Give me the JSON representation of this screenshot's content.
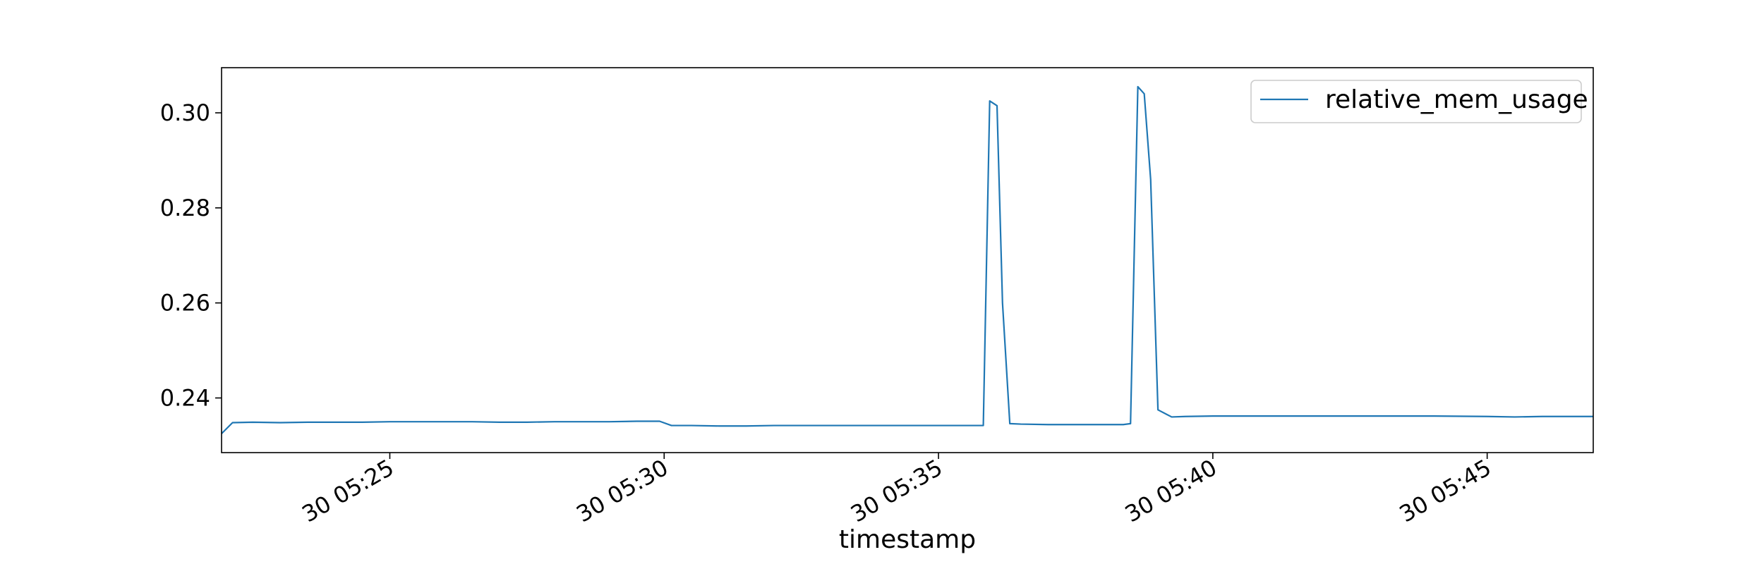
{
  "chart_data": {
    "type": "line",
    "title": "",
    "xlabel": "timestamp",
    "ylabel": "",
    "xlim": [
      "05:21:56",
      "05:46:56"
    ],
    "ylim": [
      0.2285,
      0.3095
    ],
    "grid": false,
    "legend_position": "top-right",
    "colors": {
      "series": "#1f77b4",
      "axes": "#000000",
      "background": "#ffffff"
    },
    "x_ticks": [
      {
        "value": "05:25:00",
        "label": "30 05:25"
      },
      {
        "value": "05:30:00",
        "label": "30 05:30"
      },
      {
        "value": "05:35:00",
        "label": "30 05:35"
      },
      {
        "value": "05:40:00",
        "label": "30 05:40"
      },
      {
        "value": "05:45:00",
        "label": "30 05:45"
      }
    ],
    "y_ticks": [
      {
        "value": 0.24,
        "label": "0.24"
      },
      {
        "value": 0.26,
        "label": "0.26"
      },
      {
        "value": 0.28,
        "label": "0.28"
      },
      {
        "value": 0.3,
        "label": "0.30"
      }
    ],
    "series": [
      {
        "name": "relative_mem_usage",
        "x": [
          "05:21:56",
          "05:22:08",
          "05:22:30",
          "05:23:00",
          "05:23:30",
          "05:24:00",
          "05:24:30",
          "05:25:00",
          "05:25:30",
          "05:26:00",
          "05:26:30",
          "05:27:00",
          "05:27:30",
          "05:28:00",
          "05:28:30",
          "05:29:00",
          "05:29:30",
          "05:29:55",
          "05:30:08",
          "05:30:30",
          "05:31:00",
          "05:31:30",
          "05:32:00",
          "05:32:30",
          "05:33:00",
          "05:33:30",
          "05:34:00",
          "05:34:30",
          "05:35:00",
          "05:35:30",
          "05:35:40",
          "05:35:49",
          "05:35:56",
          "05:36:04",
          "05:36:10",
          "05:36:18",
          "05:36:30",
          "05:37:00",
          "05:37:30",
          "05:38:00",
          "05:38:15",
          "05:38:22",
          "05:38:30",
          "05:38:38",
          "05:38:45",
          "05:38:52",
          "05:39:00",
          "05:39:15",
          "05:39:30",
          "05:40:00",
          "05:41:00",
          "05:42:00",
          "05:43:00",
          "05:44:00",
          "05:45:00",
          "05:45:30",
          "05:46:00",
          "05:46:56"
        ],
        "y": [
          0.2325,
          0.2348,
          0.2349,
          0.2348,
          0.2349,
          0.2349,
          0.2349,
          0.235,
          0.235,
          0.235,
          0.235,
          0.2349,
          0.2349,
          0.235,
          0.235,
          0.235,
          0.2351,
          0.2351,
          0.2342,
          0.2342,
          0.2341,
          0.2341,
          0.2342,
          0.2342,
          0.2342,
          0.2342,
          0.2342,
          0.2342,
          0.2342,
          0.2342,
          0.2342,
          0.2342,
          0.3025,
          0.3015,
          0.26,
          0.2346,
          0.2345,
          0.2344,
          0.2344,
          0.2344,
          0.2344,
          0.2344,
          0.2346,
          0.3055,
          0.304,
          0.286,
          0.2375,
          0.236,
          0.2361,
          0.2362,
          0.2362,
          0.2362,
          0.2362,
          0.2362,
          0.2361,
          0.236,
          0.2361,
          0.2361
        ]
      }
    ]
  }
}
